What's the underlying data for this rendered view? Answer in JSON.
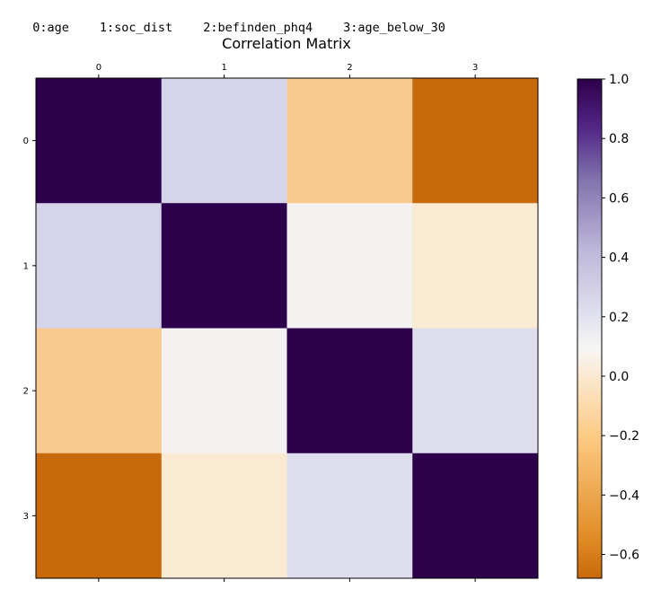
{
  "variables": [
    "0:age",
    "1:soc_dist",
    "2:befinden_phq4",
    "3:age_below_30"
  ],
  "colorbar": {
    "ticks": [
      1.0,
      0.8,
      0.6,
      0.4,
      0.2,
      0.0,
      -0.2,
      -0.4,
      -0.6
    ],
    "tick_labels": [
      "1.0",
      "0.8",
      "0.6",
      "0.4",
      "0.2",
      "0.0",
      "−0.2",
      "−0.4",
      "−0.6"
    ],
    "vmin": -0.68,
    "vmax": 1.0,
    "colormap": "PuOr"
  },
  "chart_data": {
    "type": "heatmap",
    "title": "Correlation Matrix",
    "x_tick_labels": [
      "0",
      "1",
      "2",
      "3"
    ],
    "y_tick_labels": [
      "0",
      "1",
      "2",
      "3"
    ],
    "matrix": [
      [
        1.0,
        0.2,
        -0.3,
        -0.68
      ],
      [
        0.2,
        1.0,
        0.02,
        -0.15
      ],
      [
        -0.3,
        0.02,
        1.0,
        0.15
      ],
      [
        -0.68,
        -0.15,
        0.15,
        1.0
      ]
    ]
  }
}
